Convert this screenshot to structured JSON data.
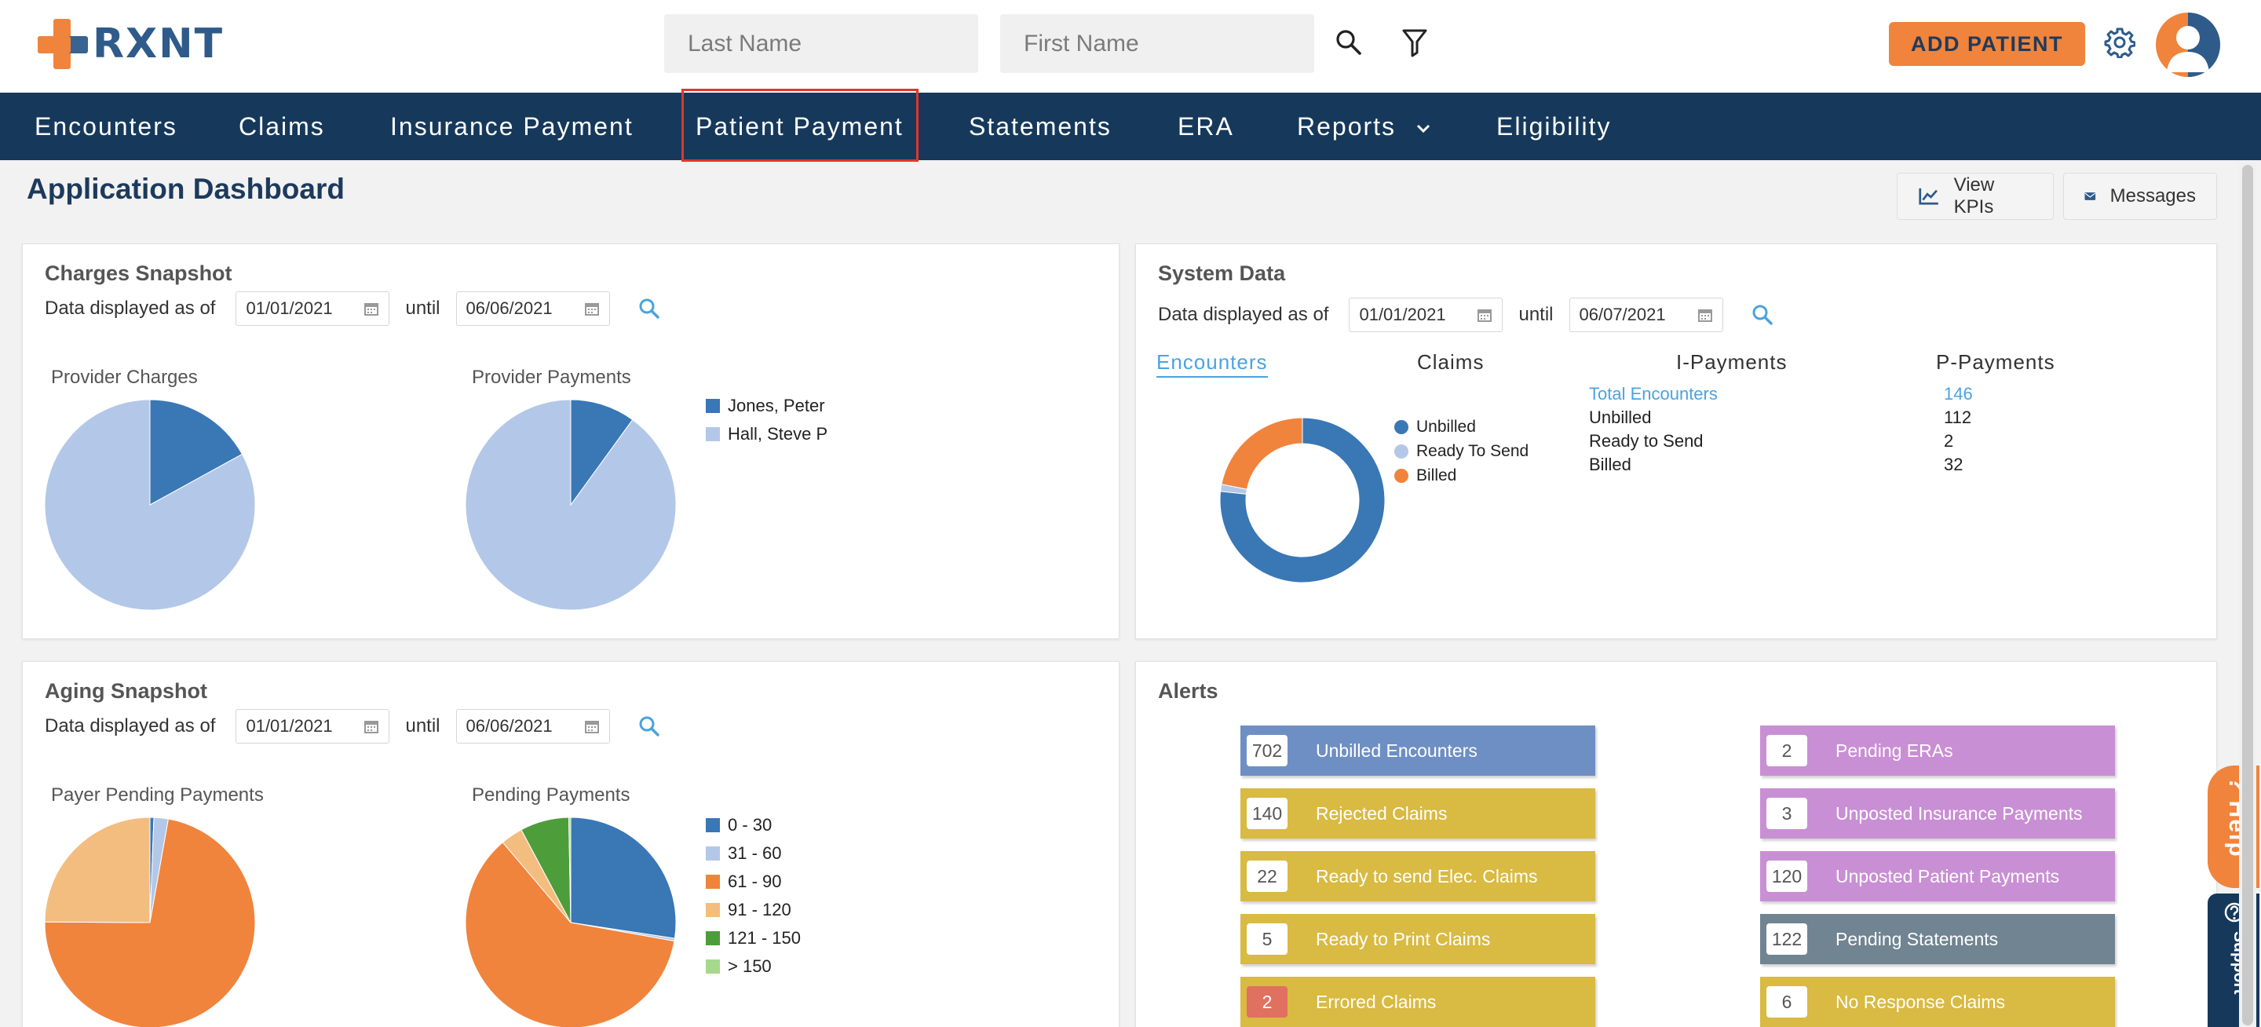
{
  "header": {
    "logo_text": "RXNT",
    "last_name_placeholder": "Last Name",
    "first_name_placeholder": "First Name",
    "add_patient_label": "ADD PATIENT"
  },
  "nav": {
    "items": [
      "Encounters",
      "Claims",
      "Insurance Payment",
      "Patient Payment",
      "Statements",
      "ERA",
      "Reports",
      "Eligibility"
    ]
  },
  "page": {
    "title": "Application Dashboard",
    "view_kpis_label": "View KPIs",
    "messages_label": "Messages"
  },
  "charges": {
    "title": "Charges Snapshot",
    "data_label": "Data displayed as of",
    "from": "01/01/2021",
    "until_label": "until",
    "to": "06/06/2021",
    "provider_charges_label": "Provider Charges",
    "provider_payments_label": "Provider Payments",
    "legend": [
      "Jones, Peter",
      "Hall, Steve P"
    ]
  },
  "system": {
    "title": "System Data",
    "data_label": "Data displayed as of",
    "from": "01/01/2021",
    "until_label": "until",
    "to": "06/07/2021",
    "tabs": [
      "Encounters",
      "Claims",
      "I-Payments",
      "P-Payments"
    ],
    "legend": [
      "Unbilled",
      "Ready To Send",
      "Billed"
    ],
    "rows": [
      {
        "label": "Total Encounters",
        "value": "146"
      },
      {
        "label": "Unbilled",
        "value": "112"
      },
      {
        "label": "Ready to Send",
        "value": "2"
      },
      {
        "label": "Billed",
        "value": "32"
      }
    ]
  },
  "aging": {
    "title": "Aging Snapshot",
    "data_label": "Data displayed as of",
    "from": "01/01/2021",
    "until_label": "until",
    "to": "06/06/2021",
    "payer_pending_label": "Payer Pending Payments",
    "pending_label": "Pending Payments",
    "legend": [
      "0 - 30",
      "31 - 60",
      "61 - 90",
      "91 - 120",
      "121 - 150",
      "> 150"
    ]
  },
  "alerts": {
    "title": "Alerts",
    "left": [
      {
        "count": "702",
        "label": "Unbilled Encounters",
        "color": "#6e8fc4",
        "count_bg": "#ffffff"
      },
      {
        "count": "140",
        "label": "Rejected Claims",
        "color": "#d9ba42",
        "count_bg": "#ffffff"
      },
      {
        "count": "22",
        "label": "Ready to send Elec. Claims",
        "color": "#d9ba42",
        "count_bg": "#ffffff"
      },
      {
        "count": "5",
        "label": "Ready to Print Claims",
        "color": "#d9ba42",
        "count_bg": "#ffffff"
      },
      {
        "count": "2",
        "label": "Errored Claims",
        "color": "#d9ba42",
        "count_bg": "#e07060"
      }
    ],
    "right": [
      {
        "count": "2",
        "label": "Pending ERAs",
        "color": "#c98fd4",
        "count_bg": "#ffffff"
      },
      {
        "count": "3",
        "label": "Unposted Insurance Payments",
        "color": "#c98fd4",
        "count_bg": "#ffffff"
      },
      {
        "count": "120",
        "label": "Unposted Patient Payments",
        "color": "#c98fd4",
        "count_bg": "#ffffff"
      },
      {
        "count": "122",
        "label": "Pending Statements",
        "color": "#708491",
        "count_bg": "#ffffff"
      },
      {
        "count": "6",
        "label": "No Response Claims",
        "color": "#d9ba42",
        "count_bg": "#ffffff"
      }
    ]
  },
  "side": {
    "help_label": "? Help",
    "support_label": "Support"
  },
  "colors": {
    "nav_bg": "#16395b",
    "accent": "#f0843c",
    "pie_dark_blue": "#3a77b5",
    "pie_light_blue": "#b3c8e8",
    "orange": "#f0843c",
    "light_orange": "#f3bd80",
    "green": "#4e9d3b",
    "light_green": "#a6d98c"
  },
  "chart_data": [
    {
      "type": "pie",
      "title": "Provider Charges",
      "categories": [
        "Jones, Peter",
        "Hall, Steve P"
      ],
      "values": [
        17,
        83
      ]
    },
    {
      "type": "pie",
      "title": "Provider Payments",
      "categories": [
        "Jones, Peter",
        "Hall, Steve P"
      ],
      "values": [
        10,
        90
      ]
    },
    {
      "type": "pie",
      "title": "",
      "donut": true,
      "categories": [
        "Unbilled",
        "Ready To Send",
        "Billed"
      ],
      "values": [
        112,
        2,
        32
      ]
    },
    {
      "type": "pie",
      "title": "Payer Pending Payments",
      "categories": [
        "0 - 30",
        "31 - 60",
        "61 - 90",
        "91 - 120",
        "121 - 150",
        "> 150"
      ],
      "values": [
        0.6,
        2.2,
        72.3,
        24.9,
        0,
        0
      ]
    },
    {
      "type": "pie",
      "title": "Pending Payments",
      "categories": [
        "0 - 30",
        "31 - 60",
        "61 - 90",
        "91 - 120",
        "121 - 150",
        "> 150"
      ],
      "values": [
        27.4,
        0.4,
        61,
        3.4,
        7.5,
        0.3
      ]
    }
  ]
}
